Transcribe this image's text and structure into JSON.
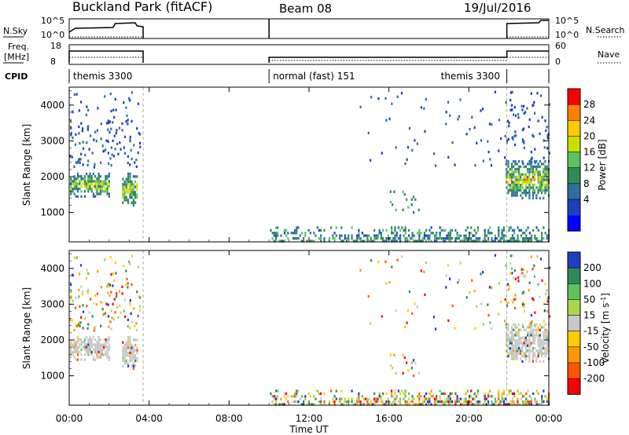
{
  "header": {
    "title": "Buckland Park (fitACF)",
    "beam": "Beam 08",
    "date": "19/Jul/2016"
  },
  "status_panels": {
    "nsky_label": "N.Sky",
    "nsky_ticks": [
      "10^5",
      "10^0"
    ],
    "nsearch_label": "N.Search",
    "nsearch_ticks": [
      "10^5",
      "10^0"
    ],
    "freq_label_line1": "Freq.",
    "freq_label_line2": "[MHz]",
    "freq_ticks": [
      "18",
      "8"
    ],
    "nave_label": "Nave",
    "nave_ticks": [
      "60",
      "0"
    ],
    "cpid_label": "CPID",
    "cpid_segments": [
      {
        "text": "themis 3300",
        "start_hour": 0.0,
        "end_hour": 3.7
      },
      {
        "text": "normal (fast) 151",
        "start_hour": 10.0,
        "end_hour": 21.9
      },
      {
        "text": "themis 3300",
        "start_hour": 21.9,
        "end_hour": 24.0
      }
    ]
  },
  "chart_data": [
    {
      "type": "heatmap",
      "name": "power",
      "ylabel": "Slant Range [km]",
      "ylim": [
        180,
        4500
      ],
      "yticks": [
        1000,
        2000,
        3000,
        4000
      ],
      "xlim": [
        0,
        24
      ],
      "colorbar": {
        "label": "Power [dB]",
        "ticks": [
          "28",
          "24",
          "20",
          "16",
          "12",
          "8",
          "4"
        ],
        "colors": [
          "#ff0000",
          "#ff7f00",
          "#ffcc00",
          "#c8e000",
          "#5fc25f",
          "#2e8b57",
          "#2e6fa0",
          "#1e3fbf",
          "#0000ff"
        ]
      },
      "data_windows_hours": [
        [
          0.0,
          3.7
        ],
        [
          10.0,
          24.0
        ]
      ],
      "echo_regions": [
        {
          "t0": 0.0,
          "t1": 2.0,
          "r0": 1450,
          "r1": 2150,
          "note": "strong"
        },
        {
          "t0": 2.6,
          "t1": 3.4,
          "r0": 1200,
          "r1": 2150,
          "note": "strong"
        },
        {
          "t0": 21.8,
          "t1": 24.0,
          "r0": 1400,
          "r1": 2500,
          "note": "strong"
        },
        {
          "t0": 10.0,
          "t1": 24.0,
          "r0": 200,
          "r1": 650,
          "note": "near-range"
        },
        {
          "t0": 16.0,
          "t1": 17.5,
          "r0": 1000,
          "r1": 1650,
          "note": "weak"
        }
      ]
    },
    {
      "type": "heatmap",
      "name": "velocity",
      "ylabel": "Slant Range [km]",
      "ylim": [
        180,
        4500
      ],
      "yticks": [
        1000,
        2000,
        3000,
        4000
      ],
      "xlim": [
        0,
        24
      ],
      "colorbar": {
        "label": "Velocity [m s^-1]",
        "ticks": [
          "200",
          "100",
          "50",
          "15",
          "-15",
          "-50",
          "-100",
          "-200"
        ],
        "colors": [
          "#1e3fbf",
          "#2e8b57",
          "#5fc25f",
          "#a8d84a",
          "#c8c8c8",
          "#ffcc00",
          "#ff9900",
          "#ff5500",
          "#ff0000"
        ]
      },
      "xticks": [
        "00:00",
        "04:00",
        "08:00",
        "12:00",
        "16:00",
        "20:00",
        "00:00"
      ],
      "xlabel": "Time UT"
    }
  ]
}
